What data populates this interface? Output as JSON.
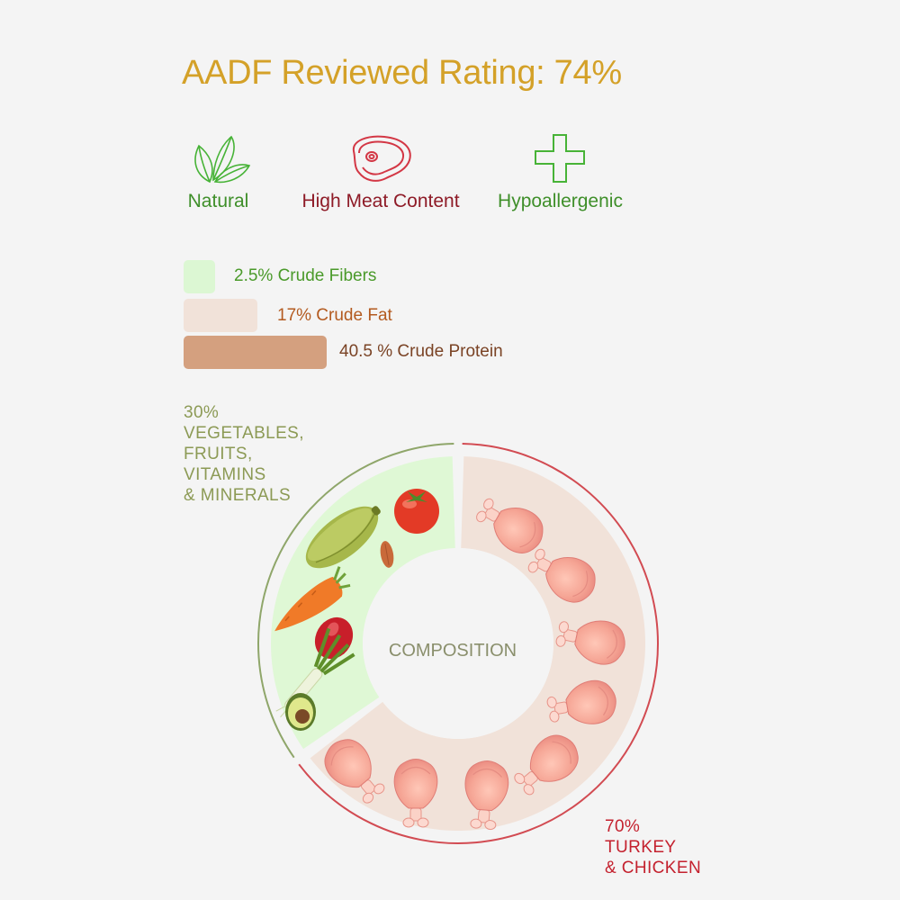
{
  "title": "AADF Reviewed Rating: 74%",
  "features": [
    {
      "label": "Natural",
      "icon": "leaf-icon",
      "color": "#3f8f2a"
    },
    {
      "label": "High Meat Content",
      "icon": "meat-steak-icon",
      "color": "#8e1b27"
    },
    {
      "label": "Hypoallergenic",
      "icon": "plus-cross-icon",
      "color": "#3f8f2a"
    }
  ],
  "nutrients": [
    {
      "label": "2.5% Crude Fibers",
      "percent": 2.5,
      "color": "#dcf7d3",
      "text_color": "#4a9a2a"
    },
    {
      "label": "17% Crude Fat",
      "percent": 17,
      "color": "#f1e2d9",
      "text_color": "#b35a1f"
    },
    {
      "label": "40.5 % Crude Protein",
      "percent": 40.5,
      "color": "#d4a07f",
      "text_color": "#7a4325"
    }
  ],
  "chart_data": {
    "type": "pie",
    "center_label": "COMPOSITION",
    "segments": [
      {
        "value": 30,
        "pct_label": "30%",
        "label_lines": [
          "VEGETABLES,",
          "FRUITS,",
          "VITAMINS",
          "& MINERALS"
        ],
        "fill": "#dff8d5",
        "ring": "#8fa66a",
        "text_color": "#8c9a55"
      },
      {
        "value": 70,
        "pct_label": "70%",
        "label_lines": [
          "TURKEY",
          "& CHICKEN"
        ],
        "fill": "#f1e2d9",
        "ring": "#d24b52",
        "text_color": "#c4212e"
      }
    ],
    "icons": {
      "vegetables": [
        "zucchini-icon",
        "tomato-icon",
        "almond-icon",
        "carrot-icon",
        "plum-tomato-icon",
        "leek-icon",
        "avocado-icon"
      ],
      "meat": [
        "chicken-leg-icon"
      ]
    }
  }
}
